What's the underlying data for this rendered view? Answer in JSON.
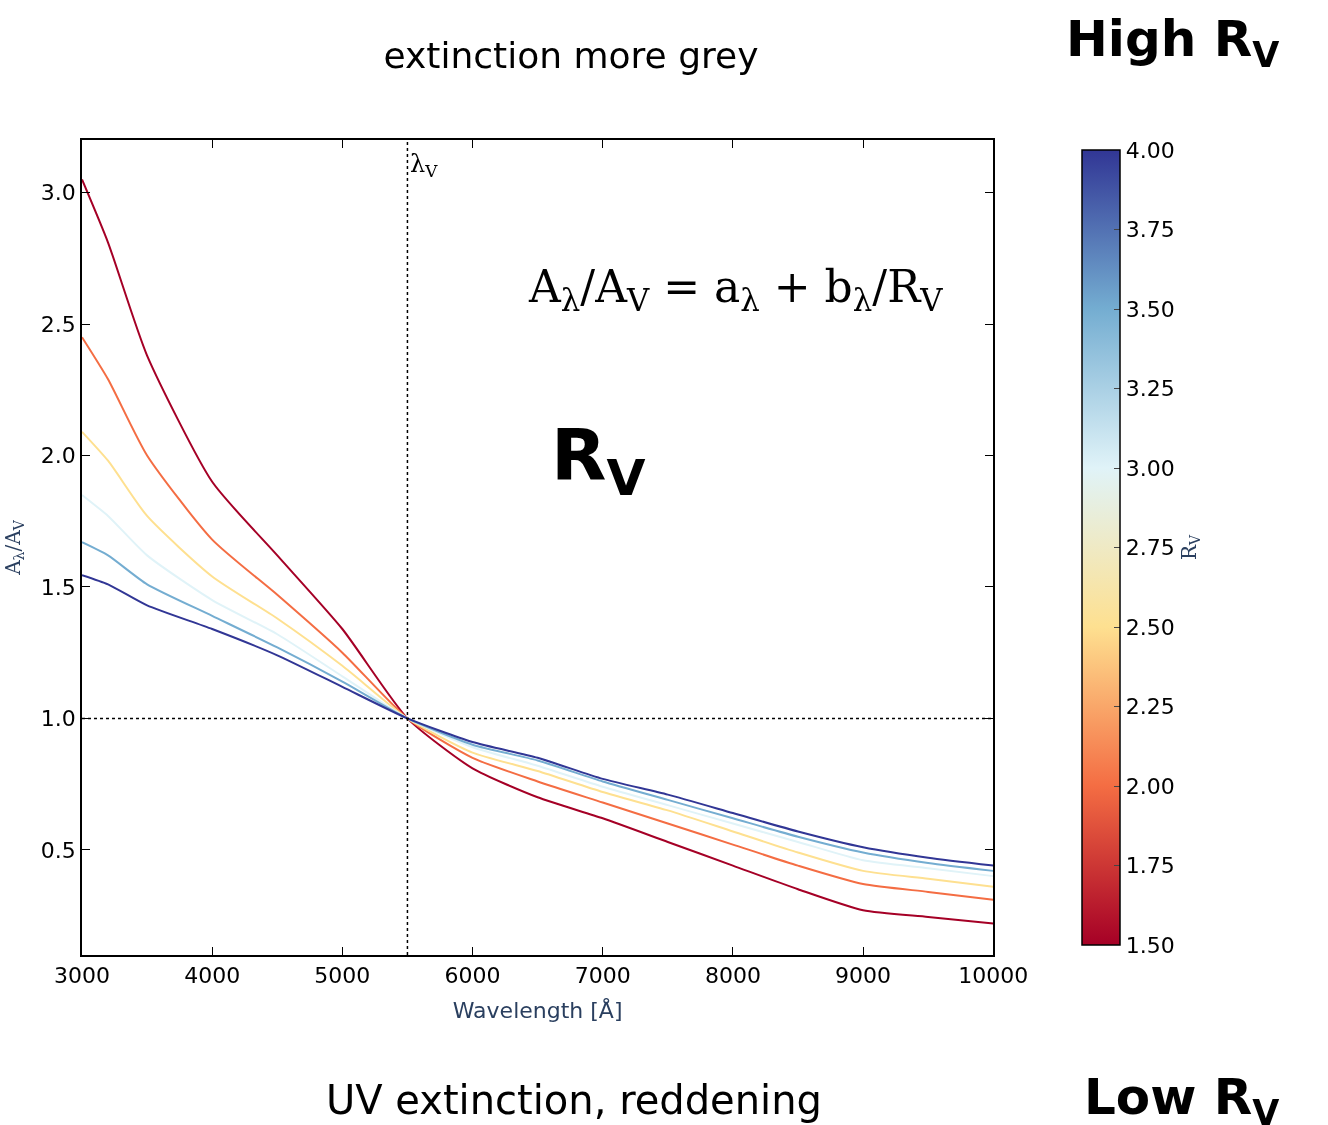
{
  "chart_data": {
    "type": "line",
    "title": "extinction more grey",
    "xlabel": "Wavelength [Å]",
    "ylabel": "A$_{λ}$/A$_{V}$",
    "clabel": "R$_{V}$",
    "x": [
      3000,
      3200,
      3500,
      4000,
      4500,
      5000,
      5500,
      6000,
      6500,
      7000,
      7500,
      8000,
      8500,
      9000,
      9500,
      10000
    ],
    "series": [
      {
        "color": "#a50026",
        "values": [
          3.05,
          2.81,
          2.38,
          1.9,
          1.62,
          1.34,
          1.0,
          0.81,
          0.7,
          0.62,
          0.53,
          0.44,
          0.35,
          0.27,
          0.245,
          0.22
        ]
      },
      {
        "color": "#f46d43",
        "values": [
          2.45,
          2.29,
          2.0,
          1.68,
          1.47,
          1.25,
          1.0,
          0.85,
          0.76,
          0.68,
          0.6,
          0.52,
          0.44,
          0.37,
          0.34,
          0.31
        ]
      },
      {
        "color": "#fee090",
        "values": [
          2.09,
          1.98,
          1.77,
          1.54,
          1.38,
          1.2,
          1.0,
          0.87,
          0.8,
          0.72,
          0.65,
          0.57,
          0.49,
          0.42,
          0.39,
          0.36
        ]
      },
      {
        "color": "#e0f3f8",
        "values": [
          1.85,
          1.77,
          1.62,
          1.45,
          1.32,
          1.16,
          1.0,
          0.89,
          0.82,
          0.74,
          0.67,
          0.6,
          0.53,
          0.46,
          0.43,
          0.4
        ]
      },
      {
        "color": "#74add1",
        "values": [
          1.67,
          1.62,
          1.51,
          1.39,
          1.27,
          1.14,
          1.0,
          0.9,
          0.84,
          0.76,
          0.69,
          0.62,
          0.55,
          0.49,
          0.45,
          0.42
        ]
      },
      {
        "color": "#313695",
        "values": [
          1.545,
          1.51,
          1.43,
          1.34,
          1.24,
          1.12,
          1.0,
          0.91,
          0.85,
          0.77,
          0.71,
          0.64,
          0.57,
          0.51,
          0.47,
          0.44
        ]
      }
    ],
    "xlim": [
      3000,
      10000
    ],
    "xticks": [
      3000,
      4000,
      5000,
      6000,
      7000,
      8000,
      9000,
      10000
    ],
    "ylim": [
      0.1,
      3.2
    ],
    "yticks": [
      0.5,
      {
        "value": 1,
        "label": "1.0"
      },
      1.5,
      {
        "value": 2,
        "label": "2.0"
      },
      2.5,
      {
        "value": 3,
        "label": "3.0"
      }
    ],
    "clim": [
      1.5,
      4.0
    ],
    "cticks": [
      {
        "value": 1.5,
        "label": "1.50"
      },
      1.75,
      {
        "value": 2,
        "label": "2.00"
      },
      2.25,
      {
        "value": 2.5,
        "label": "2.50"
      },
      2.75,
      {
        "value": 3,
        "label": "3.00"
      },
      3.25,
      {
        "value": 3.5,
        "label": "3.50"
      },
      3.75,
      {
        "value": 4,
        "label": "4.00"
      }
    ],
    "ref_lines": [
      {
        "axis": "x",
        "value": 5500,
        "line_style": "dotted",
        "color": "#000000",
        "label": "λ$_{V}$"
      },
      {
        "axis": "y",
        "value": 1.0,
        "line_style": "dotted",
        "color": "#000000"
      }
    ],
    "annotations": [
      "A$_{λ}$/A$_{V}$ = a$_{λ}$ + b$_{λ}$/R$_{V}$",
      "R$_{V}$",
      "High R$_{V}$",
      "UV extinction, reddening",
      "Low R$_{V}$"
    ],
    "line_style": "solid",
    "marker": "none"
  }
}
